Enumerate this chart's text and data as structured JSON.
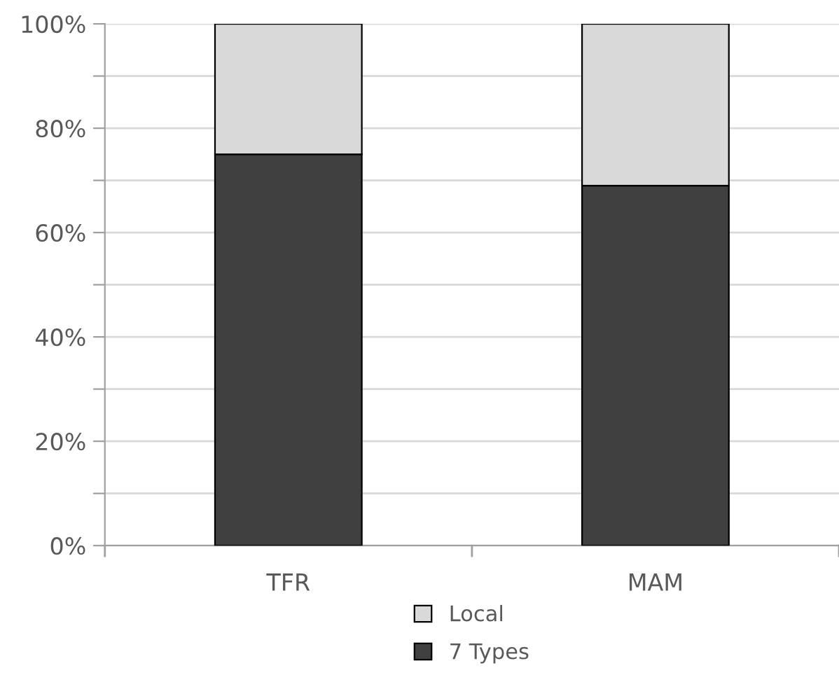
{
  "chart_data": {
    "type": "bar",
    "stacked": true,
    "categories": [
      "TFR",
      "MAM"
    ],
    "series": [
      {
        "name": "7 Types",
        "color": "#404040",
        "values": [
          75,
          69
        ]
      },
      {
        "name": "Local",
        "color": "#d9d9d9",
        "values": [
          25,
          31
        ]
      }
    ],
    "ylim": [
      0,
      100
    ],
    "yticks": [
      {
        "value": 0,
        "label": "0%"
      },
      {
        "value": 10,
        "label": null
      },
      {
        "value": 20,
        "label": "20%"
      },
      {
        "value": 30,
        "label": null
      },
      {
        "value": 40,
        "label": "40%"
      },
      {
        "value": 50,
        "label": null
      },
      {
        "value": 60,
        "label": "60%"
      },
      {
        "value": 70,
        "label": null
      },
      {
        "value": 80,
        "label": "80%"
      },
      {
        "value": 90,
        "label": null
      },
      {
        "value": 100,
        "label": "100%"
      }
    ],
    "grid": "y",
    "legend": "bottom"
  }
}
